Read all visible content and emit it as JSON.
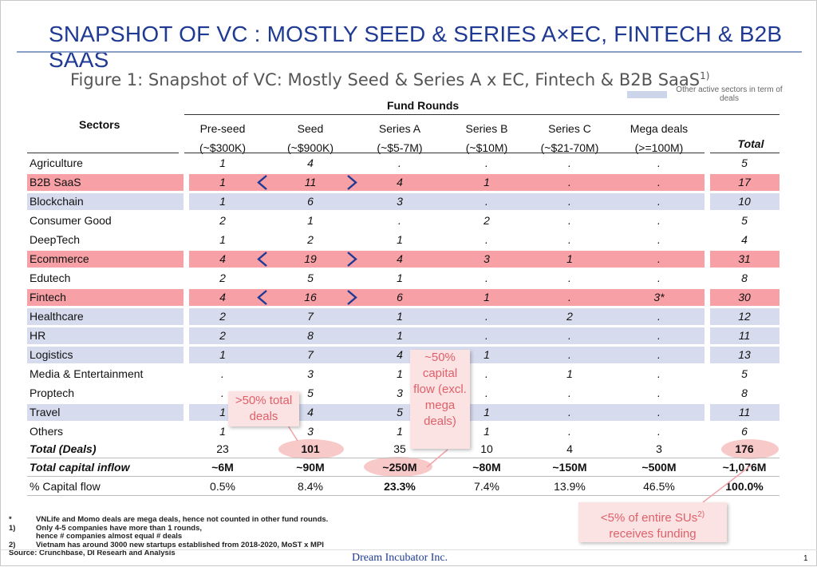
{
  "slide_title": "SNAPSHOT OF VC : MOSTLY SEED & SERIES A×EC, FINTECH & B2B SAAS",
  "figure_title": "Figure 1: Snapshot of VC: Mostly Seed & Series A x EC, Fintech & B2B SaaS",
  "figure_title_sup": "1)",
  "legend": {
    "label": "Other active sectors in term of deals",
    "color": "#ccd5ea"
  },
  "highlight_color": "#f7a1a6",
  "table": {
    "group_header": "Fund Rounds",
    "sectors_header": "Sectors",
    "total_header": "Total",
    "columns": [
      {
        "name": "Pre-seed",
        "range": "(~$300K)"
      },
      {
        "name": "Seed",
        "range": "(~$900K)"
      },
      {
        "name": "Series A",
        "range": "(~$5-7M)"
      },
      {
        "name": "Series B",
        "range": "(~$10M)"
      },
      {
        "name": "Series C",
        "range": "(~$21-70M)"
      },
      {
        "name": "Mega deals",
        "range": "(>=100M)"
      }
    ],
    "rows": [
      {
        "sector": "Agriculture",
        "values": [
          "1",
          "4",
          ".",
          ".",
          ".",
          "."
        ],
        "total": "5",
        "band": "none"
      },
      {
        "sector": "B2B SaaS",
        "values": [
          "1",
          "11",
          "4",
          "1",
          ".",
          "."
        ],
        "total": "17",
        "band": "red"
      },
      {
        "sector": "Blockchain",
        "values": [
          "1",
          "6",
          "3",
          ".",
          ".",
          "."
        ],
        "total": "10",
        "band": "blue"
      },
      {
        "sector": "Consumer Good",
        "values": [
          "2",
          "1",
          ".",
          "2",
          ".",
          "."
        ],
        "total": "5",
        "band": "none"
      },
      {
        "sector": "DeepTech",
        "values": [
          "1",
          "2",
          "1",
          ".",
          ".",
          "."
        ],
        "total": "4",
        "band": "none"
      },
      {
        "sector": "Ecommerce",
        "values": [
          "4",
          "19",
          "4",
          "3",
          "1",
          "."
        ],
        "total": "31",
        "band": "red"
      },
      {
        "sector": "Edutech",
        "values": [
          "2",
          "5",
          "1",
          ".",
          ".",
          "."
        ],
        "total": "8",
        "band": "none"
      },
      {
        "sector": "Fintech",
        "values": [
          "4",
          "16",
          "6",
          "1",
          ".",
          "3*"
        ],
        "total": "30",
        "band": "red"
      },
      {
        "sector": "Healthcare",
        "values": [
          "2",
          "7",
          "1",
          ".",
          "2",
          "."
        ],
        "total": "12",
        "band": "blue"
      },
      {
        "sector": "HR",
        "values": [
          "2",
          "8",
          "1",
          ".",
          ".",
          "."
        ],
        "total": "11",
        "band": "blue"
      },
      {
        "sector": "Logistics",
        "values": [
          "1",
          "7",
          "4",
          "1",
          ".",
          "."
        ],
        "total": "13",
        "band": "blue"
      },
      {
        "sector": "Media & Entertainment",
        "values": [
          ".",
          "3",
          "1",
          ".",
          "1",
          "."
        ],
        "total": "5",
        "band": "none"
      },
      {
        "sector": "Proptech",
        "values": [
          ".",
          "5",
          "3",
          ".",
          ".",
          "."
        ],
        "total": "8",
        "band": "none"
      },
      {
        "sector": "Travel",
        "values": [
          "1",
          "4",
          "5",
          "1",
          ".",
          "."
        ],
        "total": "11",
        "band": "blue"
      },
      {
        "sector": "Others",
        "values": [
          "1",
          "3",
          "1",
          "1",
          ".",
          "."
        ],
        "total": "6",
        "band": "none"
      }
    ],
    "summary": [
      {
        "label": "Total (Deals)",
        "values": [
          "23",
          "101",
          "35",
          "10",
          "4",
          "3"
        ],
        "total": "176"
      },
      {
        "label": "Total capital inflow",
        "values": [
          "~6M",
          "~90M",
          "~250M",
          "~80M",
          "~150M",
          "~500M"
        ],
        "total": "~1,076M"
      },
      {
        "label": "% Capital flow",
        "values": [
          "0.5%",
          "8.4%",
          "23.3%",
          "7.4%",
          "13.9%",
          "46.5%"
        ],
        "total": "100.0%"
      }
    ]
  },
  "callouts": {
    "seed": ">50% total deals",
    "series_a": "~50% capital flow (excl. mega deals)",
    "total": "<5% of entire SUs",
    "total_sup": "2)",
    "total_line2": "receives funding"
  },
  "footnotes": [
    {
      "key": "*",
      "text": "VNLife and Momo deals are mega deals, hence not counted in other fund rounds."
    },
    {
      "key": "1)",
      "text": "Only 4-5 companies have more than 1 rounds,"
    },
    {
      "key": "",
      "text": "hence # companies almost equal # deals"
    },
    {
      "key": "2)",
      "text": "Vietnam has around 3000 new startups established from 2018-2020, MoST x MPI"
    }
  ],
  "source": "Source: Crunchbase, DI Researh and Analysis",
  "brand": "Dream Incubator Inc.",
  "page_number": "1"
}
